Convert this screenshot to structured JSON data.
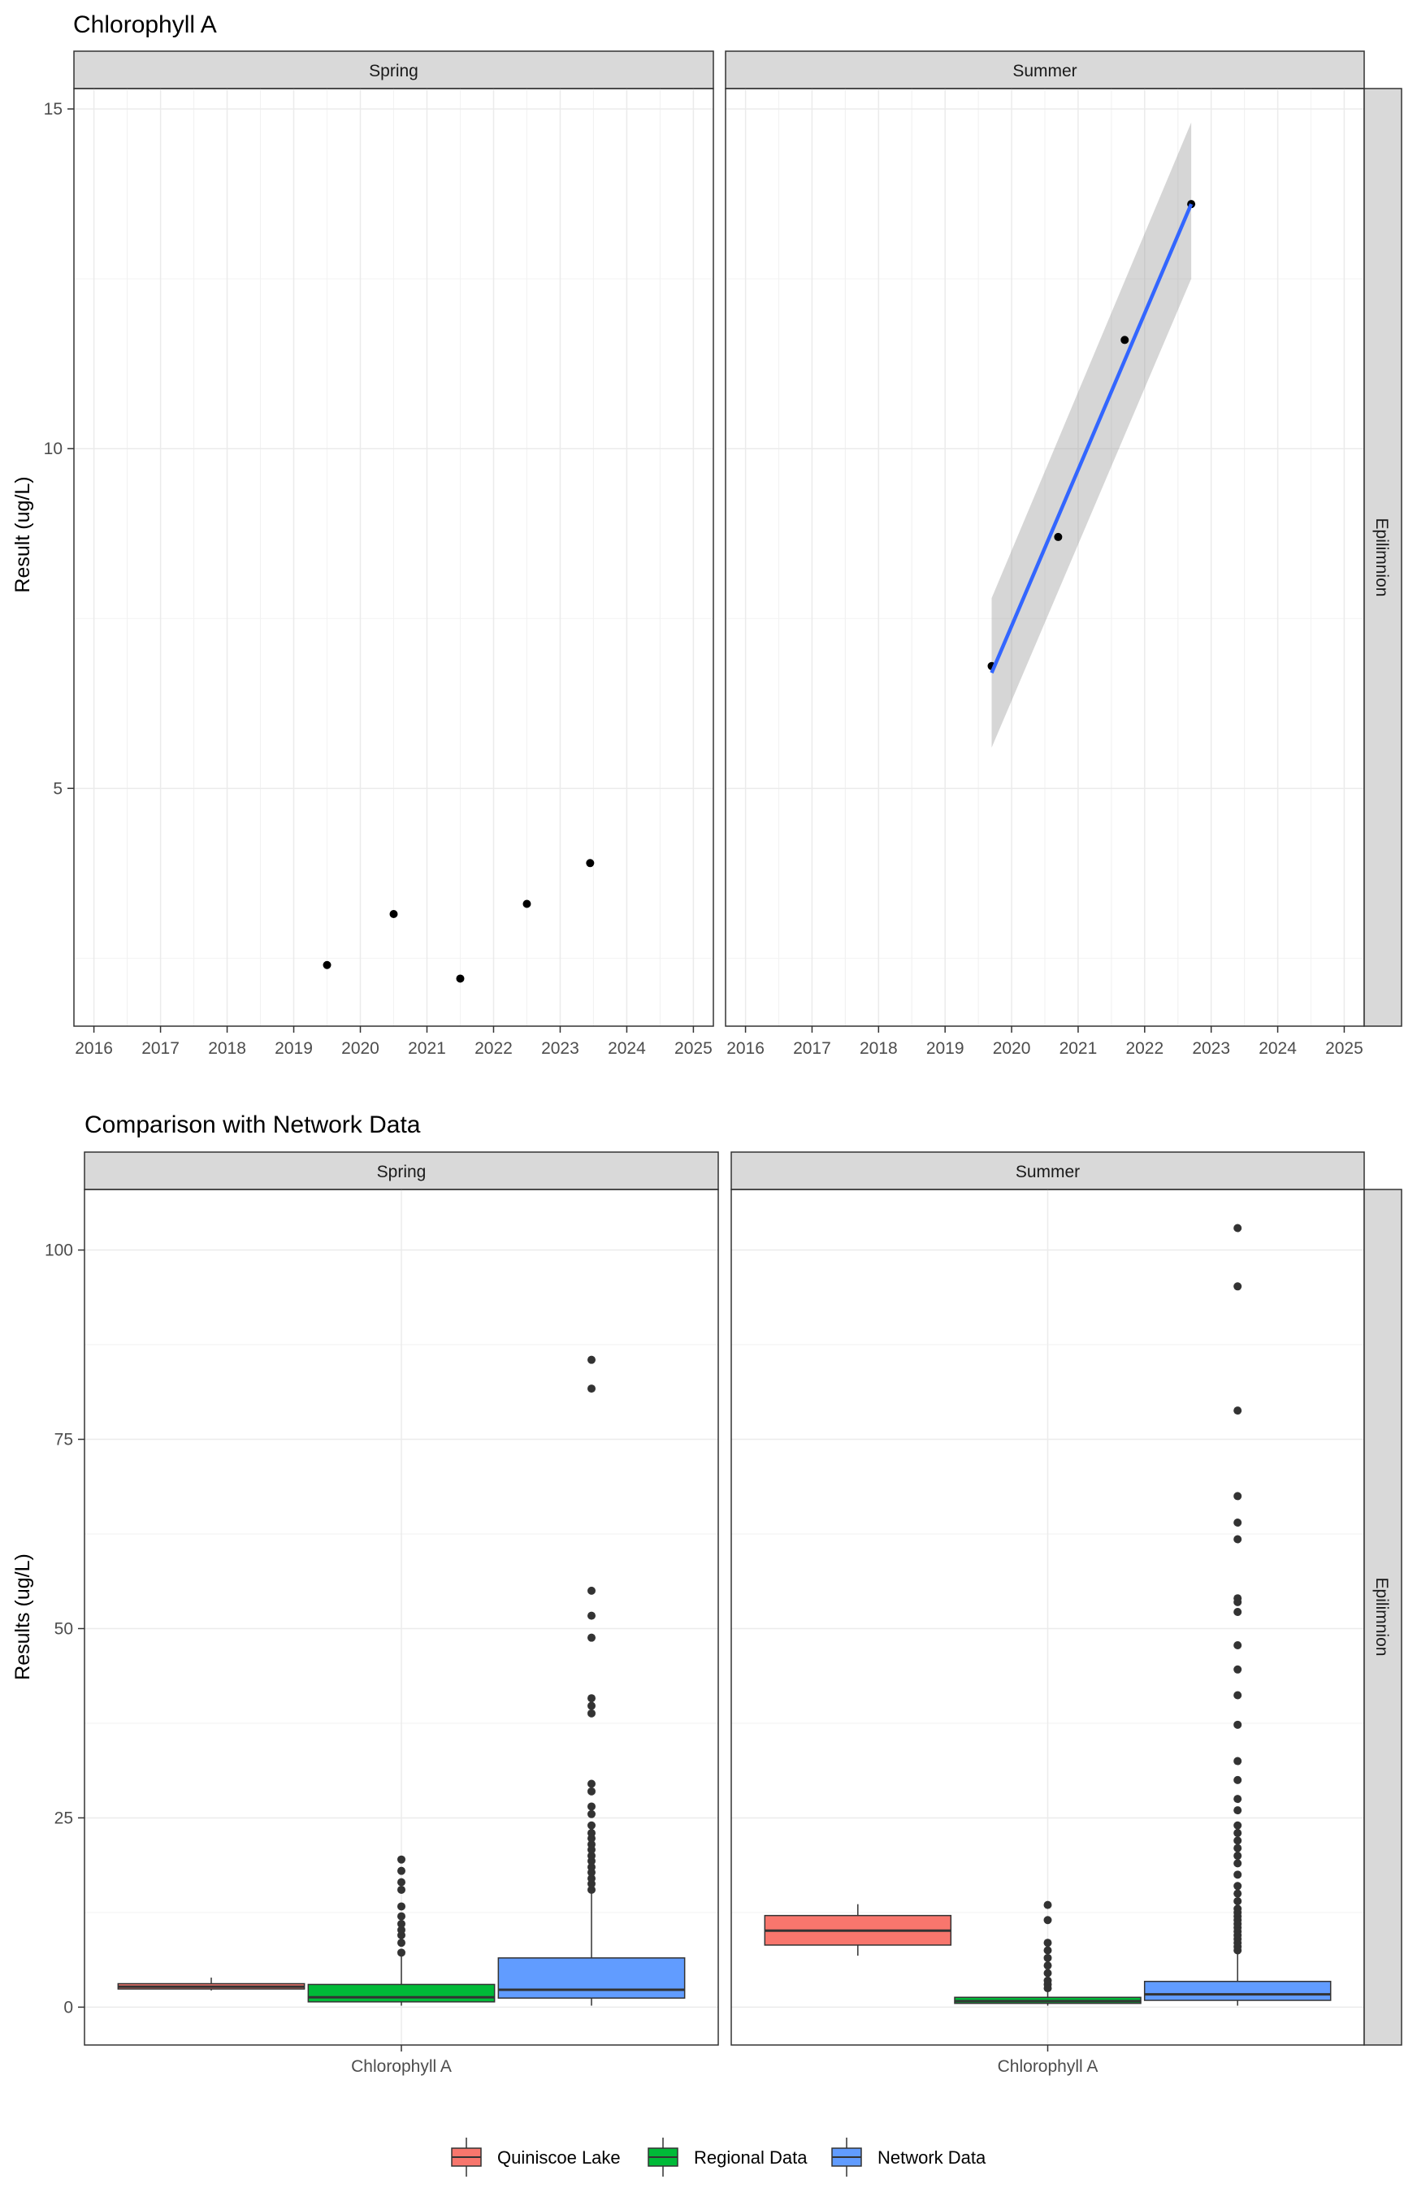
{
  "chart_data": [
    {
      "type": "scatter",
      "title": "Chlorophyll A",
      "xlabel": "",
      "ylabel": "Result (ug/L)",
      "x_ticks": [
        "2016",
        "2017",
        "2018",
        "2019",
        "2020",
        "2021",
        "2022",
        "2023",
        "2024",
        "2025"
      ],
      "y_ticks": [
        "5",
        "10",
        "15"
      ],
      "xlim": [
        2015.7,
        2025.3
      ],
      "ylim": [
        1.5,
        15.3
      ],
      "grid": true,
      "facet_row": "Epilimnion",
      "panels": [
        {
          "name": "Spring",
          "points": [
            {
              "x": 2019.5,
              "y": 2.4
            },
            {
              "x": 2020.5,
              "y": 3.15
            },
            {
              "x": 2021.5,
              "y": 2.2
            },
            {
              "x": 2022.5,
              "y": 3.3
            },
            {
              "x": 2023.45,
              "y": 3.9
            }
          ]
        },
        {
          "name": "Summer",
          "points": [
            {
              "x": 2019.7,
              "y": 6.8
            },
            {
              "x": 2020.7,
              "y": 8.7
            },
            {
              "x": 2021.7,
              "y": 11.6
            },
            {
              "x": 2022.7,
              "y": 13.6
            }
          ],
          "trend": {
            "x": [
              2019.7,
              2022.7
            ],
            "y": [
              6.7,
              13.6
            ],
            "ci_lower": [
              5.6,
              12.5
            ],
            "ci_upper": [
              7.8,
              14.8
            ]
          }
        }
      ]
    },
    {
      "type": "boxplot",
      "title": "Comparison with Network Data",
      "xlabel": "",
      "ylabel": "Results (ug/L)",
      "categories": [
        "Chlorophyll A"
      ],
      "y_ticks": [
        "0",
        "25",
        "50",
        "75",
        "100"
      ],
      "ylim": [
        -5,
        108
      ],
      "grid": true,
      "facet_row": "Epilimnion",
      "legend": {
        "position": "bottom",
        "entries": [
          {
            "name": "Quiniscoe Lake",
            "color": "#f8766d"
          },
          {
            "name": "Regional Data",
            "color": "#00ba38"
          },
          {
            "name": "Network Data",
            "color": "#619cff"
          }
        ]
      },
      "panels": [
        {
          "name": "Spring",
          "boxes": [
            {
              "series": "Quiniscoe Lake",
              "min": 2.2,
              "q1": 2.4,
              "median": 2.7,
              "q3": 3.1,
              "max": 3.9,
              "outliers": []
            },
            {
              "series": "Regional Data",
              "min": 0.2,
              "q1": 0.7,
              "median": 1.3,
              "q3": 3.0,
              "max": 6.8,
              "outliers": [
                7.2,
                8.5,
                9.5,
                10.2,
                11.0,
                12.0,
                13.3,
                15.5,
                16.5,
                18.0,
                19.5
              ]
            }
          ],
          "network": {
            "series": "Network Data",
            "min": 0.2,
            "q1": 1.2,
            "median": 2.3,
            "q3": 6.5,
            "max": 15.0,
            "outliers": [
              15.5,
              16.3,
              17.0,
              17.8,
              18.5,
              19.3,
              20.0,
              20.8,
              21.5,
              22.3,
              23.0,
              24.0,
              25.5,
              26.5,
              28.5,
              29.5,
              38.8,
              39.8,
              40.8,
              48.8,
              51.7,
              55.0,
              81.7,
              85.5
            ]
          }
        },
        {
          "name": "Summer",
          "boxes": [
            {
              "series": "Quiniscoe Lake",
              "min": 6.8,
              "q1": 8.2,
              "median": 10.1,
              "q3": 12.1,
              "max": 13.6,
              "outliers": []
            },
            {
              "series": "Regional Data",
              "min": 0.2,
              "q1": 0.5,
              "median": 0.8,
              "q3": 1.3,
              "max": 2.0,
              "outliers": [
                2.5,
                3.0,
                3.5,
                4.5,
                5.5,
                6.5,
                7.5,
                8.5,
                11.5,
                13.5
              ]
            }
          ],
          "network": {
            "series": "Network Data",
            "min": 0.2,
            "q1": 0.9,
            "median": 1.7,
            "q3": 3.4,
            "max": 7.2,
            "outliers": [
              7.5,
              8.0,
              8.5,
              9.0,
              9.5,
              10.0,
              10.5,
              11.0,
              11.5,
              12.0,
              12.5,
              13.0,
              14.0,
              15.0,
              16.0,
              17.5,
              19.0,
              20.0,
              21.0,
              22.0,
              23.0,
              24.0,
              26.0,
              27.5,
              30.0,
              32.5,
              37.3,
              41.2,
              44.6,
              47.8,
              52.2,
              53.5,
              54.0,
              61.8,
              64.0,
              67.5,
              78.8,
              95.2,
              102.9
            ]
          }
        }
      ]
    }
  ]
}
